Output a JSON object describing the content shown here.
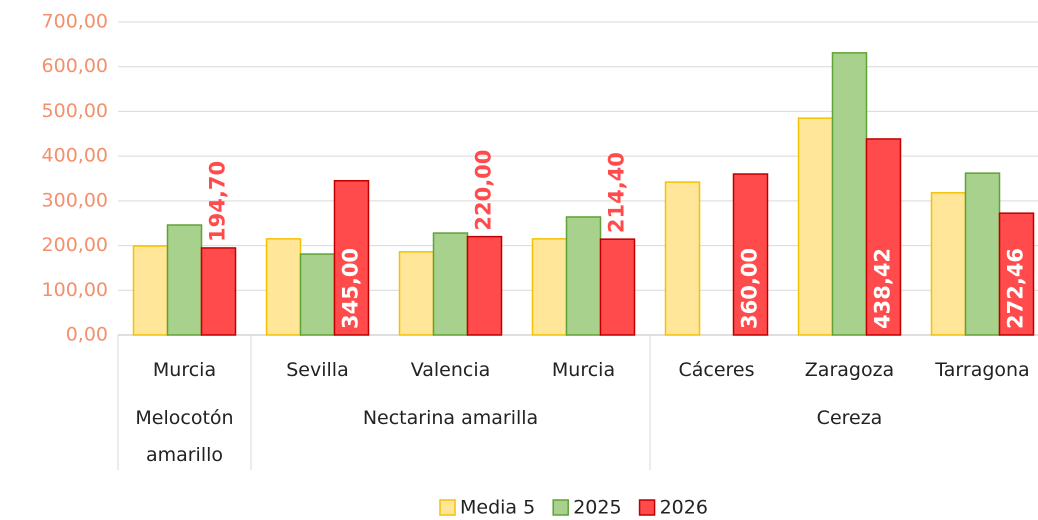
{
  "chart_data": {
    "type": "bar",
    "groups": [
      {
        "label": "Melocotón amarillo",
        "categories": [
          "Murcia"
        ]
      },
      {
        "label": "Nectarina amarilla",
        "categories": [
          "Sevilla",
          "Valencia",
          "Murcia"
        ]
      },
      {
        "label": "Cereza",
        "categories": [
          "Cáceres",
          "Zaragoza",
          "Tarragona"
        ]
      }
    ],
    "series": [
      {
        "name": "Media 5",
        "color": "#ffe699",
        "border": "#f5c200",
        "values": [
          199,
          215,
          186,
          215,
          342,
          485,
          318
        ]
      },
      {
        "name": "2025",
        "color": "#a9d18e",
        "border": "#5fa336",
        "values": [
          246,
          181,
          228,
          264,
          null,
          631,
          362
        ]
      },
      {
        "name": "2026",
        "color": "#ff4b4b",
        "border": "#c00000",
        "values": [
          194.7,
          345.0,
          220.0,
          214.4,
          360.0,
          438.42,
          272.46
        ],
        "value_labels": [
          "194,70",
          "345,00",
          "220,00",
          "214,40",
          "360,00",
          "438,42",
          "272,46"
        ]
      }
    ],
    "ylim": [
      0,
      700
    ],
    "yticks": [
      {
        "value": 0,
        "label": "0,00"
      },
      {
        "value": 100,
        "label": "100,00"
      },
      {
        "value": 200,
        "label": "200,00"
      },
      {
        "value": 300,
        "label": "300,00"
      },
      {
        "value": 400,
        "label": "400,00"
      },
      {
        "value": 500,
        "label": "500,00"
      },
      {
        "value": 600,
        "label": "600,00"
      },
      {
        "value": 700,
        "label": "700,00"
      }
    ],
    "grid": true
  }
}
